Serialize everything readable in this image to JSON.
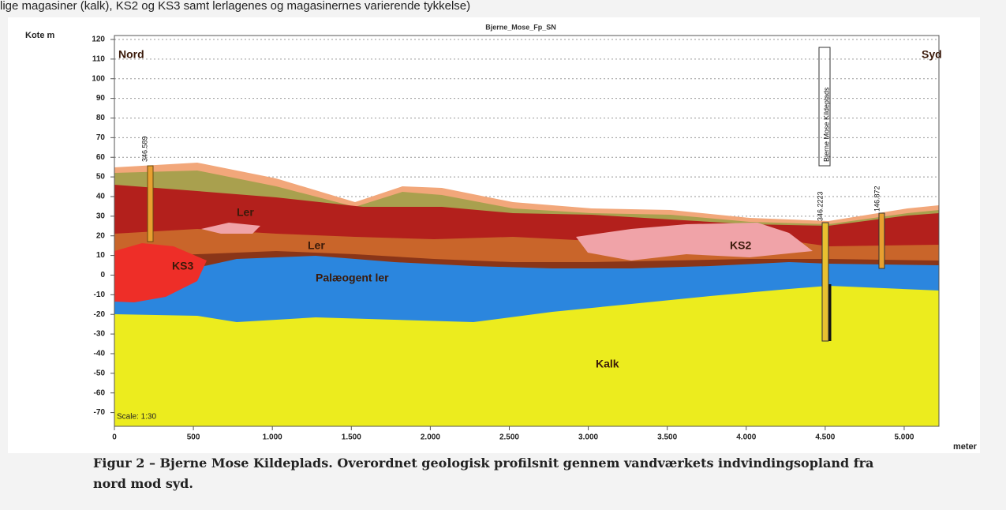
{
  "page": {
    "top_text": "lige magasiner (kalk), KS2 og KS3 samt lerlagenes og magasinernes varierende tykkelse)",
    "caption": [
      "Figur 2 – Bjerne Mose Kildeplads. Overordnet geologisk profilsnit gennem vandværkets indvindingsopland fra",
      "nord mod syd."
    ]
  },
  "chart_data": {
    "type": "profile",
    "title": "Bjerne_Mose_Fp_SN",
    "y_label": "Kote m",
    "x_label": "meter",
    "xlim": [
      0,
      5220
    ],
    "ylim": [
      -77,
      122
    ],
    "xticks": [
      0,
      500,
      {
        "value": 1000,
        "label": "1.000"
      },
      {
        "value": 1500,
        "label": "1.500"
      },
      {
        "value": 2000,
        "label": "2.000"
      },
      {
        "value": 2500,
        "label": "2.500"
      },
      {
        "value": 3000,
        "label": "3.000"
      },
      {
        "value": 3500,
        "label": "3.500"
      },
      {
        "value": 4000,
        "label": "4.000"
      },
      {
        "value": 4500,
        "label": "4.500"
      },
      {
        "value": 5000,
        "label": "5.000"
      }
    ],
    "yticks": [
      -70,
      -60,
      -50,
      -40,
      -30,
      -20,
      -10,
      0,
      10,
      20,
      30,
      40,
      50,
      60,
      70,
      80,
      90,
      100,
      110,
      120
    ],
    "grid": true,
    "annotations": [
      "Nord",
      "Syd",
      "Ler",
      "Ler",
      "KS3",
      "KS2",
      "Palæogent ler",
      "Kalk",
      "Scale: 1:30",
      "346.589",
      "346.2223",
      "146.872",
      "Bjerne Mose Kildeplads"
    ]
  }
}
